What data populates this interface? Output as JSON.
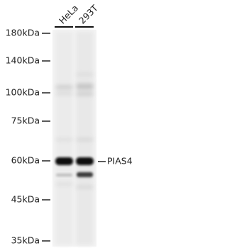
{
  "lanes": [
    "HeLa",
    "293T"
  ],
  "markers": [
    "180kDa",
    "140kDa",
    "100kDa",
    "75kDa",
    "60kDa",
    "45kDa",
    "35kDa"
  ],
  "band_label": "PIAS4"
}
